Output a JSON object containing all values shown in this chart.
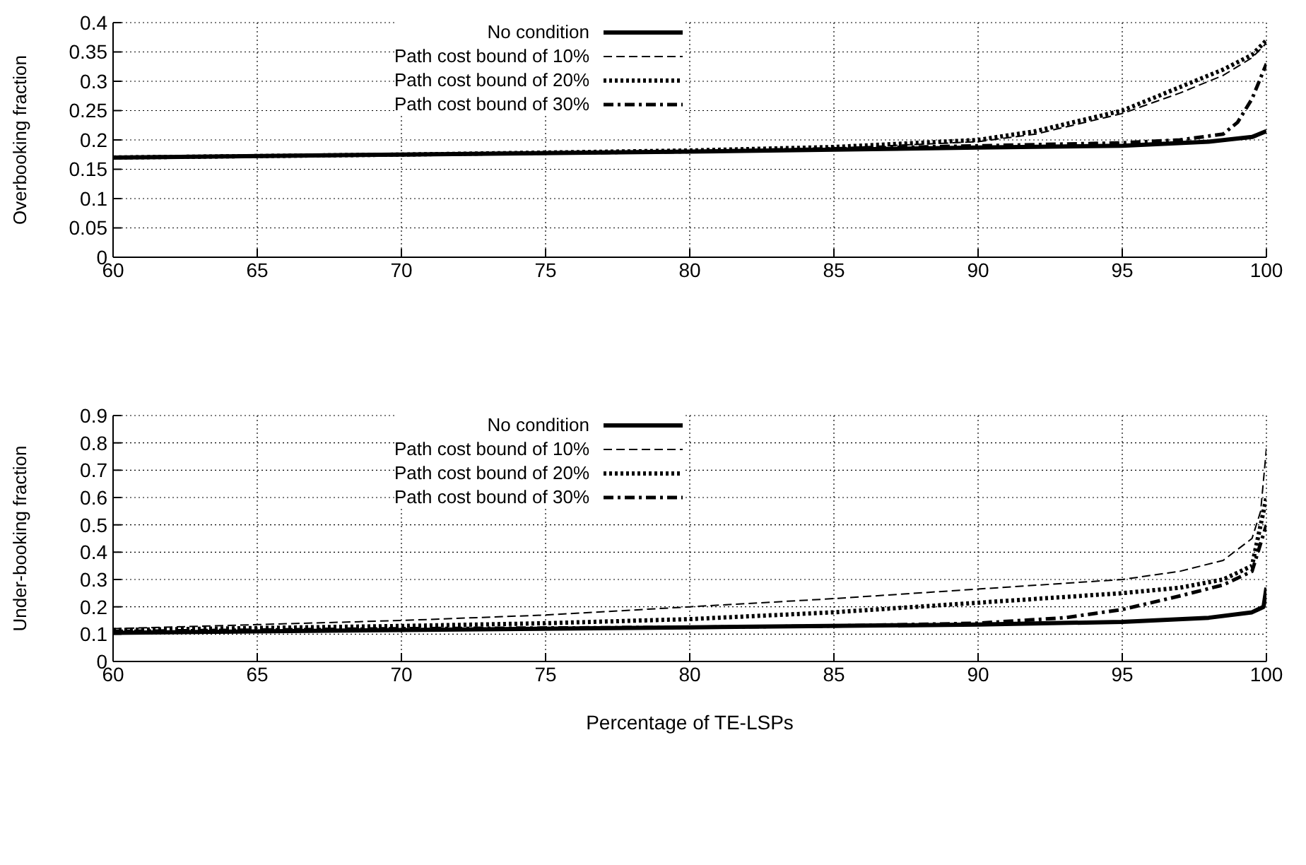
{
  "chart_data": [
    {
      "type": "line",
      "ylabel": "Overbooking fraction",
      "xlim": [
        60,
        100
      ],
      "xticks": [
        60,
        65,
        70,
        75,
        80,
        85,
        90,
        95,
        100
      ],
      "ylim": [
        0,
        0.4
      ],
      "yticks": [
        0,
        0.05,
        0.1,
        0.15,
        0.2,
        0.25,
        0.3,
        0.35,
        0.4
      ],
      "grid": true,
      "legend": "top",
      "series": [
        {
          "name": "No condition",
          "color": "#000000",
          "line_style": "solid",
          "x": [
            60,
            70,
            80,
            90,
            95,
            98,
            99.5,
            100
          ],
          "values": [
            0.17,
            0.175,
            0.18,
            0.187,
            0.19,
            0.197,
            0.205,
            0.215
          ]
        },
        {
          "name": "Path cost bound of 10%",
          "color": "#000000",
          "line_style": "dashed",
          "x": [
            60,
            70,
            80,
            85,
            90,
            92,
            95,
            97,
            98.5,
            99.5,
            100
          ],
          "values": [
            0.17,
            0.175,
            0.181,
            0.186,
            0.197,
            0.21,
            0.245,
            0.28,
            0.31,
            0.34,
            0.365
          ]
        },
        {
          "name": "Path cost bound of 20%",
          "color": "#000000",
          "line_style": "dotted",
          "x": [
            60,
            70,
            80,
            85,
            90,
            92,
            95,
            97,
            98.5,
            99.5,
            100
          ],
          "values": [
            0.17,
            0.175,
            0.182,
            0.188,
            0.2,
            0.215,
            0.25,
            0.29,
            0.32,
            0.345,
            0.37
          ]
        },
        {
          "name": "Path cost bound of 30%",
          "color": "#000000",
          "line_style": "dashdot",
          "x": [
            60,
            80,
            90,
            95,
            97,
            98.5,
            99,
            99.5,
            100
          ],
          "values": [
            0.17,
            0.18,
            0.19,
            0.195,
            0.2,
            0.21,
            0.23,
            0.27,
            0.33
          ]
        }
      ]
    },
    {
      "type": "line",
      "xlabel": "Percentage of TE-LSPs",
      "ylabel": "Under-booking fraction",
      "xlim": [
        60,
        100
      ],
      "xticks": [
        60,
        65,
        70,
        75,
        80,
        85,
        90,
        95,
        100
      ],
      "ylim": [
        0,
        0.9
      ],
      "yticks": [
        0,
        0.1,
        0.2,
        0.3,
        0.4,
        0.5,
        0.6,
        0.7,
        0.8,
        0.9
      ],
      "grid": true,
      "legend": "top",
      "series": [
        {
          "name": "No condition",
          "color": "#000000",
          "line_style": "solid",
          "x": [
            60,
            70,
            80,
            90,
            95,
            98,
            99.5,
            99.9,
            100
          ],
          "values": [
            0.105,
            0.115,
            0.125,
            0.135,
            0.145,
            0.16,
            0.18,
            0.2,
            0.27
          ]
        },
        {
          "name": "Path cost bound of 10%",
          "color": "#000000",
          "line_style": "dashed",
          "x": [
            60,
            65,
            70,
            75,
            80,
            85,
            90,
            95,
            97,
            98.5,
            99.5,
            99.8,
            100
          ],
          "values": [
            0.12,
            0.135,
            0.15,
            0.17,
            0.2,
            0.23,
            0.265,
            0.3,
            0.33,
            0.37,
            0.45,
            0.55,
            0.78
          ]
        },
        {
          "name": "Path cost bound of 20%",
          "color": "#000000",
          "line_style": "dotted",
          "x": [
            60,
            70,
            75,
            80,
            85,
            90,
            95,
            97,
            98.5,
            99.5,
            100
          ],
          "values": [
            0.115,
            0.13,
            0.14,
            0.155,
            0.18,
            0.215,
            0.25,
            0.27,
            0.3,
            0.35,
            0.6
          ]
        },
        {
          "name": "Path cost bound of 30%",
          "color": "#000000",
          "line_style": "dashdot",
          "x": [
            60,
            70,
            80,
            85,
            90,
            93,
            95,
            97,
            98.5,
            99.5,
            100
          ],
          "values": [
            0.11,
            0.12,
            0.125,
            0.13,
            0.14,
            0.16,
            0.19,
            0.24,
            0.28,
            0.33,
            0.5
          ]
        }
      ]
    }
  ]
}
